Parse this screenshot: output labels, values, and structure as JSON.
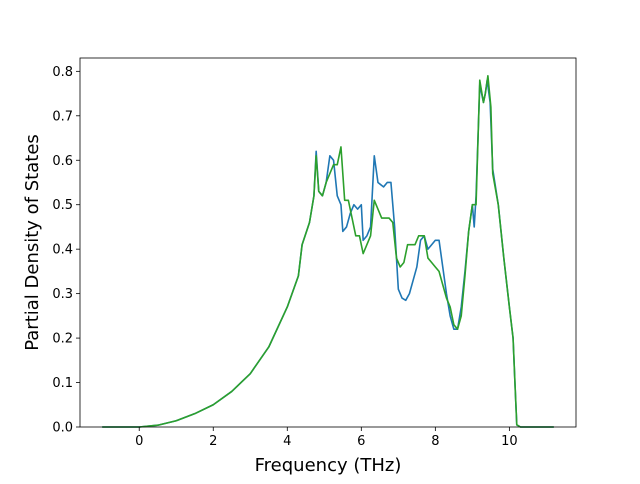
{
  "chart_data": {
    "type": "line",
    "xlabel": "Frequency (THz)",
    "ylabel": "Partial Density of States",
    "xlim": [
      -1.6,
      11.8
    ],
    "ylim": [
      0,
      0.83
    ],
    "xticks": [
      0,
      2,
      4,
      6,
      8,
      10
    ],
    "yticks": [
      0.0,
      0.1,
      0.2,
      0.3,
      0.4,
      0.5,
      0.6,
      0.7,
      0.8
    ],
    "grid": false,
    "series": [
      {
        "color": "#1f77b4",
        "points": [
          [
            -1.0,
            0.0
          ],
          [
            0.0,
            0.0
          ],
          [
            0.5,
            0.004
          ],
          [
            1.0,
            0.014
          ],
          [
            1.5,
            0.03
          ],
          [
            2.0,
            0.05
          ],
          [
            2.5,
            0.08
          ],
          [
            3.0,
            0.12
          ],
          [
            3.5,
            0.18
          ],
          [
            4.0,
            0.27
          ],
          [
            4.3,
            0.34
          ],
          [
            4.4,
            0.41
          ],
          [
            4.6,
            0.46
          ],
          [
            4.72,
            0.52
          ],
          [
            4.78,
            0.62
          ],
          [
            4.85,
            0.53
          ],
          [
            4.95,
            0.52
          ],
          [
            5.05,
            0.55
          ],
          [
            5.15,
            0.61
          ],
          [
            5.25,
            0.6
          ],
          [
            5.35,
            0.52
          ],
          [
            5.45,
            0.5
          ],
          [
            5.5,
            0.44
          ],
          [
            5.6,
            0.45
          ],
          [
            5.7,
            0.48
          ],
          [
            5.8,
            0.5
          ],
          [
            5.9,
            0.49
          ],
          [
            6.0,
            0.5
          ],
          [
            6.05,
            0.42
          ],
          [
            6.15,
            0.43
          ],
          [
            6.25,
            0.45
          ],
          [
            6.35,
            0.61
          ],
          [
            6.45,
            0.55
          ],
          [
            6.6,
            0.54
          ],
          [
            6.7,
            0.55
          ],
          [
            6.8,
            0.55
          ],
          [
            6.9,
            0.45
          ],
          [
            7.0,
            0.31
          ],
          [
            7.1,
            0.29
          ],
          [
            7.2,
            0.285
          ],
          [
            7.3,
            0.3
          ],
          [
            7.4,
            0.33
          ],
          [
            7.5,
            0.36
          ],
          [
            7.6,
            0.42
          ],
          [
            7.7,
            0.43
          ],
          [
            7.8,
            0.4
          ],
          [
            7.9,
            0.41
          ],
          [
            8.0,
            0.42
          ],
          [
            8.1,
            0.42
          ],
          [
            8.2,
            0.36
          ],
          [
            8.3,
            0.3
          ],
          [
            8.4,
            0.25
          ],
          [
            8.5,
            0.22
          ],
          [
            8.6,
            0.22
          ],
          [
            8.7,
            0.27
          ],
          [
            8.8,
            0.35
          ],
          [
            8.9,
            0.44
          ],
          [
            9.0,
            0.5
          ],
          [
            9.05,
            0.45
          ],
          [
            9.1,
            0.52
          ],
          [
            9.2,
            0.77
          ],
          [
            9.3,
            0.73
          ],
          [
            9.35,
            0.75
          ],
          [
            9.4,
            0.78
          ],
          [
            9.48,
            0.73
          ],
          [
            9.55,
            0.58
          ],
          [
            9.7,
            0.5
          ],
          [
            9.85,
            0.38
          ],
          [
            10.0,
            0.27
          ],
          [
            10.1,
            0.2
          ],
          [
            10.15,
            0.1
          ],
          [
            10.2,
            0.005
          ],
          [
            10.3,
            0.0
          ],
          [
            11.2,
            0.0
          ]
        ]
      },
      {
        "color": "#2ca02c",
        "points": [
          [
            -1.0,
            0.0
          ],
          [
            0.0,
            0.0
          ],
          [
            0.5,
            0.004
          ],
          [
            1.0,
            0.014
          ],
          [
            1.5,
            0.03
          ],
          [
            2.0,
            0.05
          ],
          [
            2.5,
            0.08
          ],
          [
            3.0,
            0.12
          ],
          [
            3.5,
            0.18
          ],
          [
            4.0,
            0.27
          ],
          [
            4.3,
            0.34
          ],
          [
            4.4,
            0.41
          ],
          [
            4.6,
            0.46
          ],
          [
            4.72,
            0.52
          ],
          [
            4.78,
            0.61
          ],
          [
            4.85,
            0.53
          ],
          [
            4.95,
            0.52
          ],
          [
            5.05,
            0.55
          ],
          [
            5.15,
            0.57
          ],
          [
            5.25,
            0.59
          ],
          [
            5.35,
            0.59
          ],
          [
            5.45,
            0.63
          ],
          [
            5.55,
            0.51
          ],
          [
            5.65,
            0.51
          ],
          [
            5.75,
            0.47
          ],
          [
            5.85,
            0.43
          ],
          [
            5.95,
            0.43
          ],
          [
            6.05,
            0.39
          ],
          [
            6.15,
            0.41
          ],
          [
            6.25,
            0.43
          ],
          [
            6.35,
            0.51
          ],
          [
            6.45,
            0.49
          ],
          [
            6.55,
            0.47
          ],
          [
            6.65,
            0.47
          ],
          [
            6.75,
            0.47
          ],
          [
            6.85,
            0.46
          ],
          [
            6.95,
            0.38
          ],
          [
            7.05,
            0.36
          ],
          [
            7.15,
            0.37
          ],
          [
            7.25,
            0.41
          ],
          [
            7.35,
            0.41
          ],
          [
            7.45,
            0.41
          ],
          [
            7.55,
            0.43
          ],
          [
            7.7,
            0.43
          ],
          [
            7.8,
            0.38
          ],
          [
            7.9,
            0.37
          ],
          [
            8.0,
            0.36
          ],
          [
            8.1,
            0.35
          ],
          [
            8.2,
            0.32
          ],
          [
            8.3,
            0.29
          ],
          [
            8.4,
            0.27
          ],
          [
            8.5,
            0.23
          ],
          [
            8.6,
            0.22
          ],
          [
            8.7,
            0.25
          ],
          [
            8.8,
            0.34
          ],
          [
            8.9,
            0.44
          ],
          [
            9.0,
            0.5
          ],
          [
            9.1,
            0.5
          ],
          [
            9.2,
            0.78
          ],
          [
            9.3,
            0.73
          ],
          [
            9.35,
            0.75
          ],
          [
            9.42,
            0.79
          ],
          [
            9.5,
            0.72
          ],
          [
            9.55,
            0.57
          ],
          [
            9.7,
            0.5
          ],
          [
            9.85,
            0.38
          ],
          [
            10.0,
            0.27
          ],
          [
            10.1,
            0.2
          ],
          [
            10.15,
            0.1
          ],
          [
            10.2,
            0.005
          ],
          [
            10.3,
            0.0
          ],
          [
            11.2,
            0.0
          ]
        ]
      }
    ]
  }
}
